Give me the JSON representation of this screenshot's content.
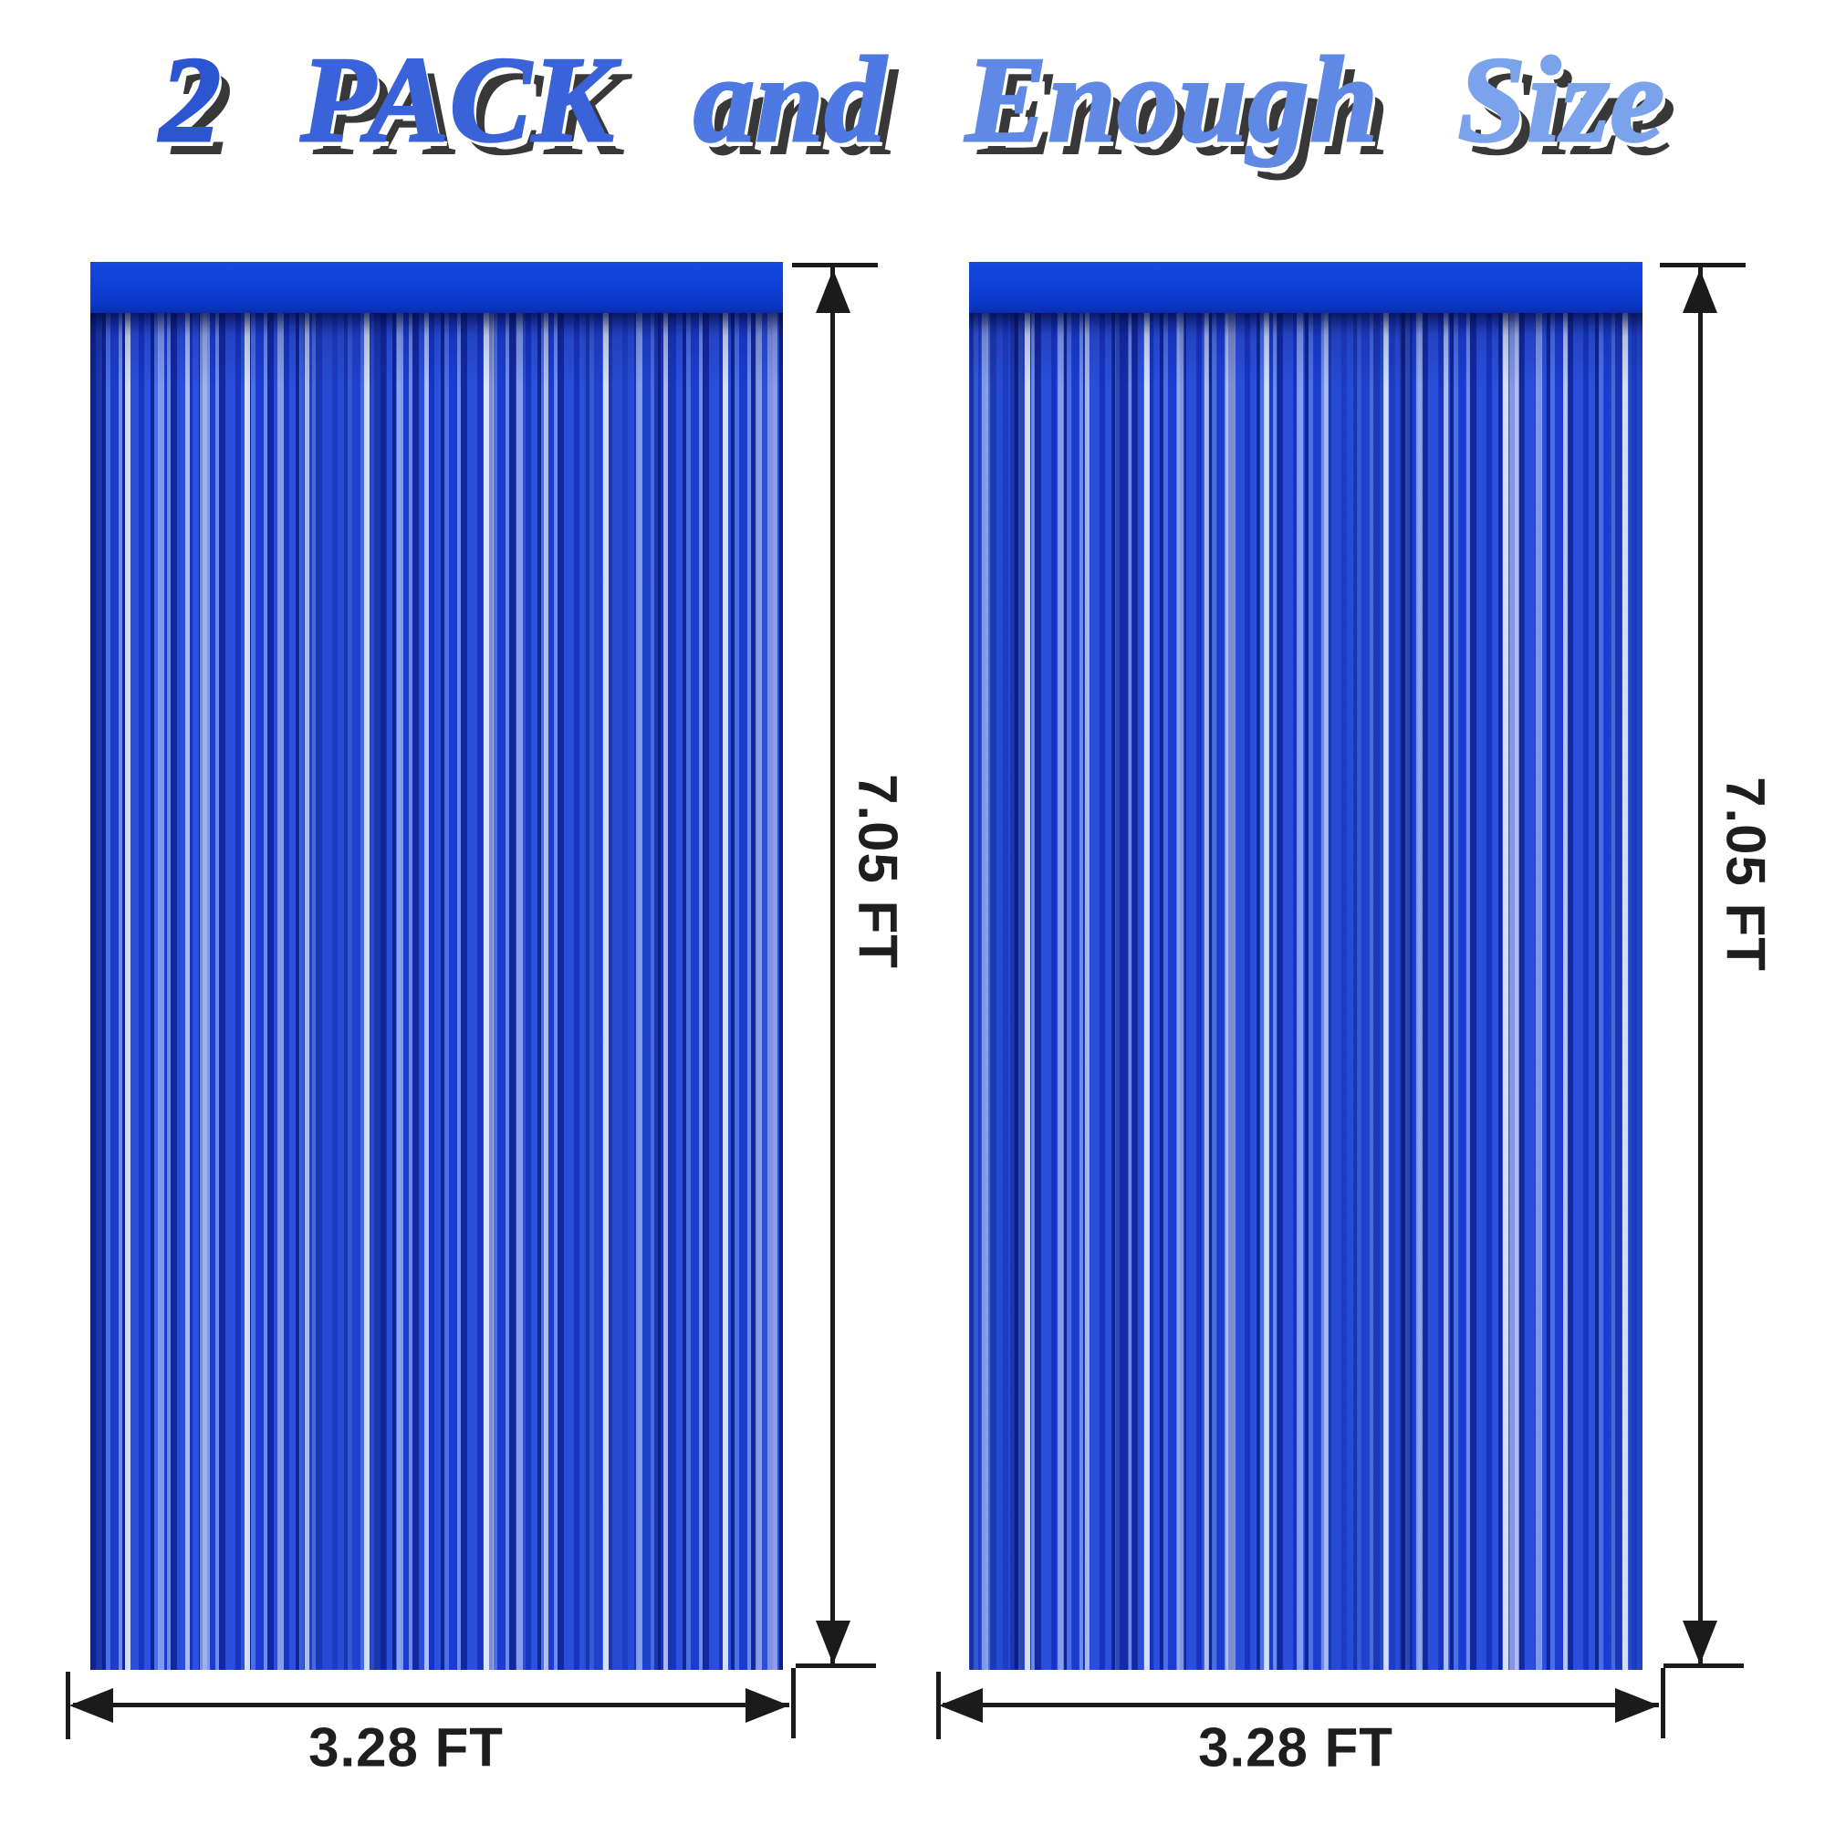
{
  "title": {
    "text": "2 PACK and Enough Size",
    "words": [
      {
        "text": "2",
        "color": "#2c55d2"
      },
      {
        "text": "PACK",
        "color": "#3a63d9"
      },
      {
        "text": "and",
        "color": "#4e79e2"
      },
      {
        "text": "Enough",
        "color": "#6089e6"
      },
      {
        "text": "Size",
        "color": "#7ba3ec"
      }
    ],
    "shadow_color": "#383838"
  },
  "curtains": [
    {
      "position": "left",
      "height_label": "7.05 FT",
      "width_label": "3.28 FT"
    },
    {
      "position": "right",
      "height_label": "7.05 FT",
      "width_label": "3.28 FT"
    }
  ],
  "colors": {
    "background": "#ffffff",
    "header_bar": "#0d3fd6",
    "fringe_base": "#1d3fd0",
    "fringe_dark": "#0e2596",
    "fringe_light": "#6d8ceb",
    "fringe_highlight": "#dfe8fb",
    "dimension_line": "#1b1b1b",
    "label_text": "#1e1e1e"
  }
}
